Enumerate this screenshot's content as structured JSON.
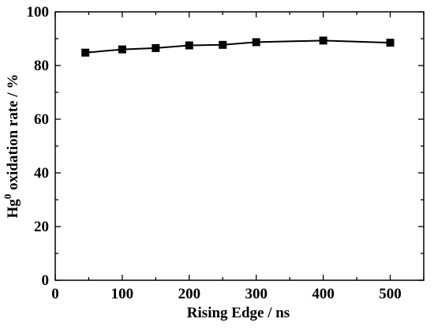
{
  "chart_data": {
    "type": "line",
    "title": "",
    "xlabel": "Rising Edge / ns",
    "ylabel": {
      "prefix": "Hg",
      "superscript": "0",
      "suffix": " oxidation rate / %"
    },
    "xlim": [
      0,
      550
    ],
    "ylim": [
      0,
      100
    ],
    "xticks": [
      0,
      100,
      200,
      300,
      400,
      500
    ],
    "yticks": [
      0,
      20,
      40,
      60,
      80,
      100
    ],
    "xminor_step": 50,
    "yminor_step": 10,
    "grid": false,
    "legend": "none",
    "marker": "square",
    "color": "#000000",
    "x": [
      45,
      100,
      150,
      200,
      250,
      300,
      400,
      500
    ],
    "series": [
      {
        "values": [
          84.8,
          86.0,
          86.5,
          87.5,
          87.7,
          88.7,
          89.3,
          88.5
        ]
      }
    ]
  }
}
